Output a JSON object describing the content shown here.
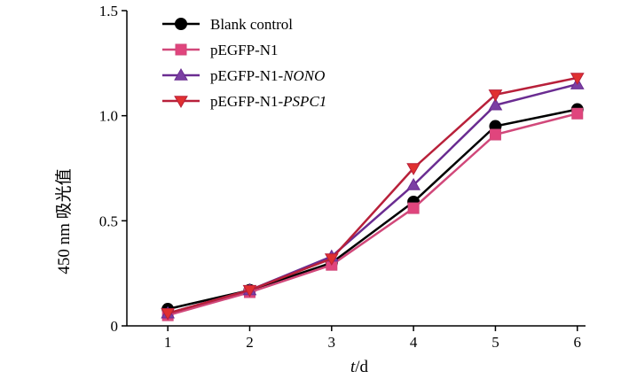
{
  "chart_data": {
    "type": "line",
    "title": "",
    "xlabel_var": "t",
    "xlabel_unit": "/d",
    "ylabel": "450 nm 吸光值",
    "x": [
      1,
      2,
      3,
      4,
      5,
      6
    ],
    "xlim": [
      0.5,
      6.1
    ],
    "ylim": [
      0,
      1.5
    ],
    "yticks": [
      "0",
      "0.5",
      "1.0",
      "1.5"
    ],
    "xticks": [
      "1",
      "2",
      "3",
      "4",
      "5",
      "6"
    ],
    "grid": false,
    "legend_position": "top-left",
    "series": [
      {
        "name": "Blank control",
        "name_italic": "",
        "marker": "circle",
        "line_color": "#000000",
        "marker_color": "#000000",
        "values": [
          0.08,
          0.17,
          0.3,
          0.59,
          0.95,
          1.03
        ]
      },
      {
        "name": "pEGFP-N1",
        "name_italic": "",
        "marker": "square",
        "line_color": "#d1487a",
        "marker_color": "#e0457d",
        "values": [
          0.05,
          0.16,
          0.29,
          0.56,
          0.91,
          1.01
        ]
      },
      {
        "name": "pEGFP-N1-",
        "name_italic": "NONO",
        "marker": "triangle-up",
        "line_color": "#6a2c91",
        "marker_color": "#7b3fa3",
        "values": [
          0.06,
          0.17,
          0.33,
          0.67,
          1.05,
          1.15
        ]
      },
      {
        "name": "pEGFP-N1-",
        "name_italic": "PSPC1",
        "marker": "triangle-down",
        "line_color": "#b8203a",
        "marker_color": "#e03030",
        "values": [
          0.06,
          0.17,
          0.32,
          0.75,
          1.1,
          1.18
        ]
      }
    ]
  }
}
